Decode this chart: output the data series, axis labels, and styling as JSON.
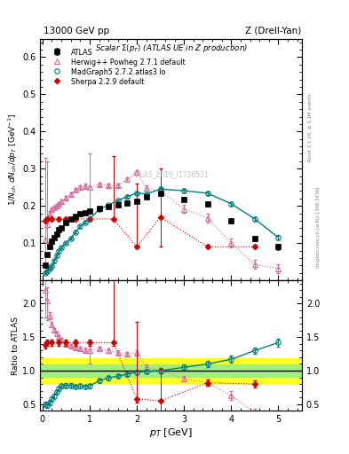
{
  "title_left": "13000 GeV pp",
  "title_right": "Z (Drell-Yan)",
  "plot_title": "Scalar Σ(p$_T$) (ATLAS UE in Z production)",
  "ylabel_main": "1/N$_{ch}$ dN$_{ch}$/dp$_T$ [GeV]",
  "ylabel_ratio": "Ratio to ATLAS",
  "xlabel": "p$_T$ [GeV]",
  "ylim_main": [
    0.0,
    0.65
  ],
  "ylim_ratio": [
    0.4,
    2.35
  ],
  "xlim": [
    -0.05,
    5.5
  ],
  "watermark": "ATLAS_2019_I1736531",
  "rivet_label": "Rivet 3.1.10, ≥ 3.1M events",
  "arxiv_label": "mcplots.cern.ch [arXiv:1306.3436]",
  "atlas_x": [
    0.05,
    0.1,
    0.15,
    0.2,
    0.25,
    0.3,
    0.35,
    0.4,
    0.5,
    0.6,
    0.7,
    0.8,
    0.9,
    1.0,
    1.2,
    1.4,
    1.6,
    1.8,
    2.0,
    2.2,
    2.5,
    3.0,
    3.5,
    4.0,
    4.5,
    5.0
  ],
  "atlas_y": [
    0.04,
    0.07,
    0.09,
    0.105,
    0.115,
    0.125,
    0.135,
    0.14,
    0.155,
    0.165,
    0.172,
    0.178,
    0.182,
    0.187,
    0.193,
    0.197,
    0.202,
    0.207,
    0.213,
    0.225,
    0.233,
    0.218,
    0.205,
    0.16,
    0.112,
    0.09
  ],
  "atlas_yerr": [
    0.004,
    0.004,
    0.004,
    0.004,
    0.004,
    0.004,
    0.004,
    0.004,
    0.004,
    0.004,
    0.004,
    0.004,
    0.004,
    0.004,
    0.004,
    0.004,
    0.004,
    0.004,
    0.004,
    0.004,
    0.006,
    0.006,
    0.007,
    0.008,
    0.008,
    0.008
  ],
  "herwig_x": [
    0.05,
    0.1,
    0.15,
    0.2,
    0.25,
    0.3,
    0.35,
    0.4,
    0.5,
    0.6,
    0.7,
    0.8,
    0.9,
    1.0,
    1.2,
    1.4,
    1.6,
    1.8,
    2.0,
    2.2,
    2.5,
    3.0,
    3.5,
    4.0,
    4.5,
    5.0
  ],
  "herwig_y": [
    0.11,
    0.15,
    0.18,
    0.19,
    0.195,
    0.2,
    0.205,
    0.212,
    0.222,
    0.232,
    0.243,
    0.25,
    0.254,
    0.25,
    0.258,
    0.255,
    0.256,
    0.271,
    0.29,
    0.248,
    0.24,
    0.192,
    0.168,
    0.1,
    0.042,
    0.032
  ],
  "herwig_yerr_lo": [
    0.09,
    0.05,
    0.005,
    0.005,
    0.005,
    0.005,
    0.005,
    0.005,
    0.005,
    0.005,
    0.005,
    0.005,
    0.005,
    0.09,
    0.005,
    0.005,
    0.005,
    0.005,
    0.005,
    0.008,
    0.01,
    0.01,
    0.012,
    0.012,
    0.012,
    0.012
  ],
  "herwig_yerr_hi": [
    0.22,
    0.17,
    0.005,
    0.005,
    0.005,
    0.005,
    0.005,
    0.005,
    0.005,
    0.005,
    0.005,
    0.005,
    0.005,
    0.09,
    0.005,
    0.005,
    0.005,
    0.005,
    0.005,
    0.008,
    0.01,
    0.01,
    0.012,
    0.012,
    0.012,
    0.012
  ],
  "madgraph_x": [
    0.05,
    0.1,
    0.15,
    0.2,
    0.25,
    0.3,
    0.35,
    0.4,
    0.5,
    0.6,
    0.7,
    0.8,
    0.9,
    1.0,
    1.2,
    1.4,
    1.6,
    1.8,
    2.0,
    2.2,
    2.5,
    3.0,
    3.5,
    4.0,
    4.5,
    5.0
  ],
  "madgraph_y": [
    0.02,
    0.025,
    0.032,
    0.038,
    0.052,
    0.066,
    0.078,
    0.088,
    0.1,
    0.112,
    0.13,
    0.145,
    0.156,
    0.165,
    0.19,
    0.202,
    0.215,
    0.225,
    0.235,
    0.232,
    0.245,
    0.241,
    0.234,
    0.206,
    0.165,
    0.115
  ],
  "madgraph_yerr": [
    0.003,
    0.003,
    0.003,
    0.003,
    0.003,
    0.003,
    0.003,
    0.003,
    0.003,
    0.003,
    0.003,
    0.003,
    0.003,
    0.003,
    0.003,
    0.003,
    0.003,
    0.003,
    0.003,
    0.003,
    0.004,
    0.005,
    0.005,
    0.005,
    0.005,
    0.006
  ],
  "sherpa_x": [
    0.05,
    0.1,
    0.2,
    0.35,
    0.5,
    0.7,
    1.0,
    1.5,
    2.0,
    2.5,
    3.5,
    4.5
  ],
  "sherpa_y": [
    0.16,
    0.165,
    0.165,
    0.165,
    0.165,
    0.165,
    0.165,
    0.165,
    0.09,
    0.17,
    0.09,
    0.09
  ],
  "sherpa_yerr_lo": [
    0.005,
    0.005,
    0.005,
    0.005,
    0.005,
    0.005,
    0.005,
    0.005,
    0.005,
    0.08,
    0.005,
    0.005
  ],
  "sherpa_yerr_hi": [
    0.005,
    0.005,
    0.005,
    0.005,
    0.005,
    0.005,
    0.005,
    0.17,
    0.17,
    0.13,
    0.005,
    0.005
  ],
  "atlas_color": "#000000",
  "herwig_color": "#d46fa0",
  "madgraph_color": "#008080",
  "sherpa_color": "#cc0000",
  "band_yellow_lo": 0.82,
  "band_yellow_hi": 1.18,
  "band_green_lo": 0.91,
  "band_green_hi": 1.09,
  "ratio_herwig_y": [
    2.2,
    2.05,
    1.82,
    1.69,
    1.61,
    1.55,
    1.5,
    1.46,
    1.4,
    1.37,
    1.35,
    1.33,
    1.31,
    1.3,
    1.33,
    1.3,
    1.27,
    1.25,
    1.27,
    1.05,
    1.0,
    0.88,
    0.82,
    0.63,
    0.37,
    0.32
  ],
  "ratio_herwig_err_lo": [
    0.4,
    0.3,
    0.05,
    0.04,
    0.03,
    0.03,
    0.03,
    0.03,
    0.03,
    0.03,
    0.03,
    0.03,
    0.03,
    0.2,
    0.03,
    0.03,
    0.03,
    0.03,
    0.03,
    0.04,
    0.04,
    0.04,
    0.05,
    0.06,
    0.06,
    0.06
  ],
  "ratio_herwig_err_hi": [
    0.3,
    0.2,
    0.05,
    0.04,
    0.03,
    0.03,
    0.03,
    0.03,
    0.03,
    0.03,
    0.03,
    0.03,
    0.03,
    0.1,
    0.03,
    0.03,
    0.03,
    0.03,
    0.03,
    0.04,
    0.04,
    0.04,
    0.05,
    0.06,
    0.06,
    0.06
  ],
  "ratio_madgraph_y": [
    0.5,
    0.48,
    0.52,
    0.58,
    0.62,
    0.68,
    0.73,
    0.77,
    0.78,
    0.78,
    0.76,
    0.77,
    0.76,
    0.77,
    0.85,
    0.89,
    0.92,
    0.95,
    0.98,
    0.99,
    1.0,
    1.05,
    1.1,
    1.17,
    1.3,
    1.42
  ],
  "ratio_madgraph_err": [
    0.04,
    0.04,
    0.03,
    0.03,
    0.03,
    0.03,
    0.03,
    0.03,
    0.03,
    0.03,
    0.03,
    0.03,
    0.03,
    0.03,
    0.03,
    0.03,
    0.03,
    0.03,
    0.03,
    0.03,
    0.04,
    0.04,
    0.05,
    0.05,
    0.05,
    0.06
  ],
  "ratio_sherpa_y": [
    1.38,
    1.42,
    1.42,
    1.42,
    1.42,
    1.42,
    1.42,
    1.42,
    0.58,
    0.55,
    0.82,
    0.8
  ],
  "ratio_sherpa_err_lo": [
    0.05,
    0.05,
    0.05,
    0.05,
    0.05,
    0.05,
    0.05,
    0.05,
    0.05,
    0.45,
    0.05,
    0.05
  ],
  "ratio_sherpa_err_hi": [
    0.05,
    0.05,
    0.05,
    0.05,
    0.05,
    0.05,
    0.05,
    0.95,
    1.15,
    0.48,
    0.05,
    0.05
  ]
}
